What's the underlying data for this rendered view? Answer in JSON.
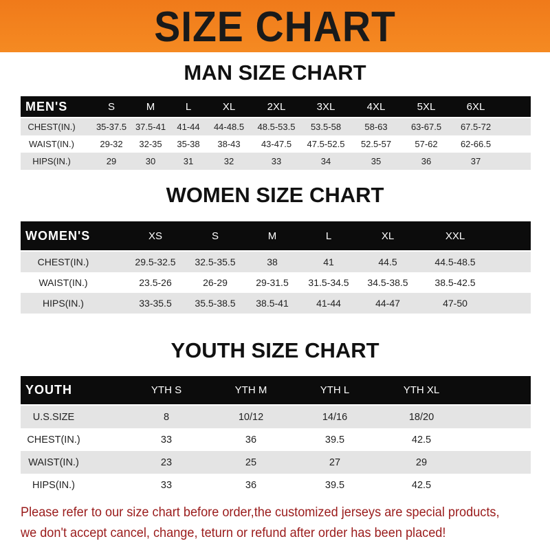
{
  "banner_title": "SIZE CHART",
  "colors": {
    "banner": "#f58a22",
    "header_row": "#0c0c0c",
    "stripe": "#e4e4e4",
    "note": "#9a1b1b"
  },
  "men": {
    "title": "MAN SIZE CHART",
    "header": [
      "MEN'S",
      "S",
      "M",
      "L",
      "XL",
      "2XL",
      "3XL",
      "4XL",
      "5XL",
      "6XL"
    ],
    "rows": [
      [
        "CHEST(IN.)",
        "35-37.5",
        "37.5-41",
        "41-44",
        "44-48.5",
        "48.5-53.5",
        "53.5-58",
        "58-63",
        "63-67.5",
        "67.5-72"
      ],
      [
        "WAIST(IN.)",
        "29-32",
        "32-35",
        "35-38",
        "38-43",
        "43-47.5",
        "47.5-52.5",
        "52.5-57",
        "57-62",
        "62-66.5"
      ],
      [
        "HIPS(IN.)",
        "29",
        "30",
        "31",
        "32",
        "33",
        "34",
        "35",
        "36",
        "37"
      ]
    ]
  },
  "women": {
    "title": "WOMEN SIZE CHART",
    "header": [
      "WOMEN'S",
      "XS",
      "S",
      "M",
      "L",
      "XL",
      "XXL"
    ],
    "rows": [
      [
        "CHEST(IN.)",
        "29.5-32.5",
        "32.5-35.5",
        "38",
        "41",
        "44.5",
        "44.5-48.5"
      ],
      [
        "WAIST(IN.)",
        "23.5-26",
        "26-29",
        "29-31.5",
        "31.5-34.5",
        "34.5-38.5",
        "38.5-42.5"
      ],
      [
        "HIPS(IN.)",
        "33-35.5",
        "35.5-38.5",
        "38.5-41",
        "41-44",
        "44-47",
        "47-50"
      ]
    ]
  },
  "youth": {
    "title": "YOUTH SIZE CHART",
    "header": [
      "YOUTH",
      "YTH S",
      "YTH M",
      "YTH L",
      "YTH XL"
    ],
    "rows": [
      [
        "U.S.SIZE",
        "8",
        "10/12",
        "14/16",
        "18/20"
      ],
      [
        "CHEST(IN.)",
        "33",
        "36",
        "39.5",
        "42.5"
      ],
      [
        "WAIST(IN.)",
        "23",
        "25",
        "27",
        "29"
      ],
      [
        "HIPS(IN.)",
        "33",
        "36",
        "39.5",
        "42.5"
      ]
    ]
  },
  "note": {
    "line1": "Please refer to our size chart before order,the customized jerseys are special products,",
    "line2": "we don't accept cancel, change, teturn or refund after order has been placed!"
  }
}
